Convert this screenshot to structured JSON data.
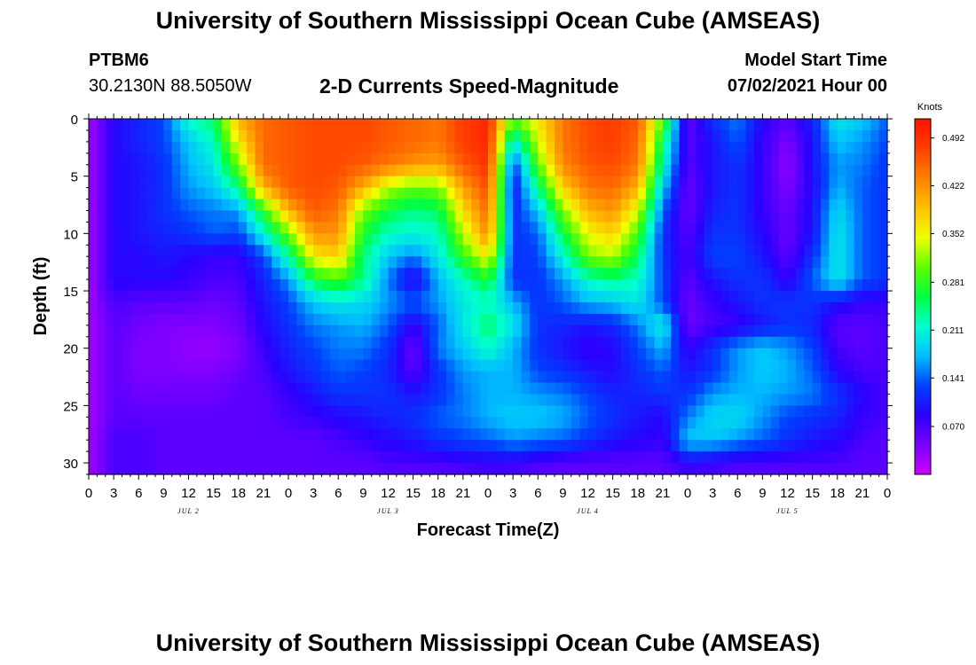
{
  "header": {
    "title": "University of Southern Mississippi Ocean Cube (AMSEAS)",
    "station_id": "PTBM6",
    "station_coords": "30.2130N  88.5050W",
    "chart_title": "2-D Currents Speed-Magnitude",
    "model_start_label": "Model Start Time",
    "model_start_value": "07/02/2021 Hour 00"
  },
  "footer": {
    "title": "University of Southern Mississippi Ocean Cube (AMSEAS)"
  },
  "chart_data": {
    "type": "heatmap",
    "title": "2-D Currents Speed-Magnitude",
    "xlabel": "Forecast Time(Z)",
    "ylabel": "Depth (ft)",
    "x_unit": "hours from model start",
    "xlim": [
      0,
      96
    ],
    "ylim": [
      31,
      0
    ],
    "x_tick_labels": [
      "0",
      "3",
      "6",
      "9",
      "12",
      "15",
      "18",
      "21",
      "0",
      "3",
      "6",
      "9",
      "12",
      "15",
      "18",
      "21",
      "0",
      "3",
      "6",
      "9",
      "12",
      "15",
      "18",
      "21",
      "0",
      "3",
      "6",
      "9",
      "12",
      "15",
      "18",
      "21",
      "0"
    ],
    "y_ticks": [
      0,
      5,
      10,
      15,
      20,
      25,
      30
    ],
    "y_tick_labels": [
      "0",
      "5",
      "10",
      "15",
      "20",
      "25",
      "30"
    ],
    "day_labels": [
      {
        "label": "JUL 2",
        "hour": 12
      },
      {
        "label": "JUL 3",
        "hour": 36
      },
      {
        "label": "JUL 4",
        "hour": 60
      },
      {
        "label": "JUL 5",
        "hour": 84
      }
    ],
    "colorbar": {
      "unit": "Knots",
      "min": 0.0,
      "max": 0.52,
      "tick_values": [
        0.492,
        0.422,
        0.352,
        0.281,
        0.211,
        0.141,
        0.07
      ],
      "tick_labels": [
        "0.492",
        "0.422",
        "0.352",
        "0.281",
        "0.211",
        "0.141",
        "0.070"
      ],
      "colors": [
        "#cc00ff",
        "#7a00ff",
        "#2a00ff",
        "#0040ff",
        "#00c0ff",
        "#00ffd0",
        "#00ff40",
        "#60ff00",
        "#f0ff00",
        "#ffc000",
        "#ff8000",
        "#ff4000",
        "#ff1000"
      ]
    },
    "x_hours": [
      0,
      3,
      6,
      9,
      12,
      15,
      18,
      21,
      24,
      27,
      30,
      33,
      36,
      39,
      42,
      45,
      48,
      51,
      54,
      57,
      60,
      63,
      66,
      69,
      72,
      75,
      78,
      81,
      84,
      87,
      90,
      93,
      96
    ],
    "depths": [
      0,
      2,
      4,
      6,
      8,
      10,
      12,
      14,
      16,
      18,
      20,
      22,
      24,
      26,
      28,
      30,
      31
    ],
    "values": [
      [
        0.02,
        0.09,
        0.11,
        0.13,
        0.22,
        0.25,
        0.4,
        0.45,
        0.46,
        0.47,
        0.47,
        0.47,
        0.46,
        0.45,
        0.44,
        0.48,
        0.5,
        0.3,
        0.36,
        0.44,
        0.47,
        0.48,
        0.46,
        0.3,
        0.05,
        0.12,
        0.15,
        0.09,
        0.06,
        0.11,
        0.2,
        0.18,
        0.14
      ],
      [
        0.02,
        0.09,
        0.11,
        0.13,
        0.18,
        0.22,
        0.36,
        0.45,
        0.46,
        0.47,
        0.47,
        0.47,
        0.46,
        0.45,
        0.44,
        0.48,
        0.5,
        0.2,
        0.34,
        0.44,
        0.47,
        0.48,
        0.45,
        0.25,
        0.06,
        0.1,
        0.14,
        0.08,
        0.04,
        0.1,
        0.18,
        0.16,
        0.13
      ],
      [
        0.02,
        0.09,
        0.1,
        0.12,
        0.17,
        0.2,
        0.31,
        0.45,
        0.46,
        0.47,
        0.47,
        0.46,
        0.44,
        0.42,
        0.41,
        0.46,
        0.49,
        0.12,
        0.3,
        0.43,
        0.46,
        0.47,
        0.44,
        0.22,
        0.06,
        0.1,
        0.12,
        0.08,
        0.03,
        0.1,
        0.16,
        0.15,
        0.12
      ],
      [
        0.02,
        0.09,
        0.1,
        0.12,
        0.16,
        0.18,
        0.24,
        0.4,
        0.46,
        0.47,
        0.46,
        0.4,
        0.33,
        0.3,
        0.31,
        0.41,
        0.47,
        0.1,
        0.24,
        0.38,
        0.44,
        0.45,
        0.4,
        0.18,
        0.05,
        0.1,
        0.12,
        0.08,
        0.04,
        0.09,
        0.17,
        0.14,
        0.12
      ],
      [
        0.02,
        0.09,
        0.1,
        0.12,
        0.14,
        0.15,
        0.16,
        0.28,
        0.4,
        0.46,
        0.44,
        0.31,
        0.26,
        0.24,
        0.25,
        0.37,
        0.45,
        0.11,
        0.18,
        0.31,
        0.4,
        0.42,
        0.34,
        0.14,
        0.05,
        0.11,
        0.12,
        0.08,
        0.05,
        0.1,
        0.19,
        0.14,
        0.12
      ],
      [
        0.02,
        0.09,
        0.1,
        0.11,
        0.12,
        0.14,
        0.13,
        0.21,
        0.31,
        0.42,
        0.42,
        0.27,
        0.22,
        0.21,
        0.22,
        0.33,
        0.43,
        0.12,
        0.14,
        0.26,
        0.35,
        0.38,
        0.29,
        0.12,
        0.06,
        0.12,
        0.12,
        0.09,
        0.05,
        0.1,
        0.2,
        0.14,
        0.12
      ],
      [
        0.02,
        0.09,
        0.09,
        0.1,
        0.09,
        0.08,
        0.08,
        0.13,
        0.23,
        0.36,
        0.38,
        0.24,
        0.18,
        0.15,
        0.2,
        0.28,
        0.36,
        0.12,
        0.13,
        0.21,
        0.31,
        0.33,
        0.25,
        0.12,
        0.07,
        0.13,
        0.13,
        0.1,
        0.06,
        0.12,
        0.2,
        0.14,
        0.12
      ],
      [
        0.02,
        0.09,
        0.09,
        0.09,
        0.08,
        0.07,
        0.07,
        0.11,
        0.16,
        0.26,
        0.29,
        0.24,
        0.15,
        0.08,
        0.17,
        0.22,
        0.27,
        0.12,
        0.12,
        0.16,
        0.22,
        0.24,
        0.22,
        0.13,
        0.06,
        0.1,
        0.12,
        0.12,
        0.08,
        0.14,
        0.2,
        0.14,
        0.12
      ],
      [
        0.02,
        0.07,
        0.06,
        0.06,
        0.06,
        0.05,
        0.06,
        0.1,
        0.13,
        0.18,
        0.2,
        0.19,
        0.16,
        0.14,
        0.16,
        0.2,
        0.22,
        0.17,
        0.12,
        0.14,
        0.17,
        0.18,
        0.2,
        0.13,
        0.05,
        0.08,
        0.1,
        0.12,
        0.12,
        0.12,
        0.1,
        0.08,
        0.08
      ],
      [
        0.02,
        0.06,
        0.05,
        0.04,
        0.04,
        0.04,
        0.05,
        0.09,
        0.12,
        0.15,
        0.16,
        0.17,
        0.14,
        0.08,
        0.14,
        0.2,
        0.25,
        0.2,
        0.12,
        0.11,
        0.1,
        0.11,
        0.15,
        0.21,
        0.05,
        0.07,
        0.08,
        0.1,
        0.12,
        0.11,
        0.06,
        0.06,
        0.07
      ],
      [
        0.02,
        0.06,
        0.04,
        0.04,
        0.03,
        0.03,
        0.04,
        0.08,
        0.11,
        0.13,
        0.15,
        0.15,
        0.12,
        0.05,
        0.15,
        0.18,
        0.22,
        0.17,
        0.12,
        0.1,
        0.08,
        0.09,
        0.13,
        0.17,
        0.08,
        0.12,
        0.16,
        0.18,
        0.16,
        0.13,
        0.07,
        0.06,
        0.07
      ],
      [
        0.02,
        0.06,
        0.04,
        0.04,
        0.04,
        0.04,
        0.05,
        0.07,
        0.1,
        0.12,
        0.14,
        0.13,
        0.11,
        0.06,
        0.12,
        0.16,
        0.17,
        0.17,
        0.13,
        0.12,
        0.1,
        0.09,
        0.12,
        0.14,
        0.1,
        0.12,
        0.16,
        0.18,
        0.17,
        0.14,
        0.09,
        0.07,
        0.07
      ],
      [
        0.02,
        0.06,
        0.05,
        0.05,
        0.05,
        0.05,
        0.06,
        0.06,
        0.08,
        0.1,
        0.12,
        0.12,
        0.12,
        0.1,
        0.12,
        0.15,
        0.17,
        0.17,
        0.16,
        0.15,
        0.13,
        0.11,
        0.11,
        0.12,
        0.12,
        0.16,
        0.17,
        0.17,
        0.16,
        0.15,
        0.12,
        0.09,
        0.07
      ],
      [
        0.02,
        0.06,
        0.06,
        0.06,
        0.06,
        0.06,
        0.06,
        0.06,
        0.07,
        0.08,
        0.09,
        0.1,
        0.11,
        0.12,
        0.14,
        0.15,
        0.17,
        0.18,
        0.18,
        0.17,
        0.14,
        0.12,
        0.1,
        0.09,
        0.15,
        0.19,
        0.19,
        0.16,
        0.13,
        0.12,
        0.11,
        0.08,
        0.07
      ],
      [
        0.02,
        0.07,
        0.07,
        0.06,
        0.06,
        0.06,
        0.06,
        0.06,
        0.06,
        0.06,
        0.07,
        0.08,
        0.09,
        0.1,
        0.12,
        0.13,
        0.14,
        0.16,
        0.15,
        0.14,
        0.12,
        0.1,
        0.09,
        0.08,
        0.18,
        0.18,
        0.16,
        0.14,
        0.12,
        0.1,
        0.09,
        0.07,
        0.06
      ],
      [
        0.02,
        0.07,
        0.07,
        0.06,
        0.06,
        0.06,
        0.06,
        0.06,
        0.06,
        0.06,
        0.06,
        0.06,
        0.07,
        0.07,
        0.07,
        0.08,
        0.08,
        0.08,
        0.07,
        0.06,
        0.06,
        0.06,
        0.06,
        0.06,
        0.09,
        0.08,
        0.07,
        0.07,
        0.07,
        0.07,
        0.07,
        0.06,
        0.06
      ],
      [
        0.02,
        0.07,
        0.07,
        0.06,
        0.06,
        0.06,
        0.06,
        0.06,
        0.06,
        0.06,
        0.06,
        0.06,
        0.06,
        0.06,
        0.06,
        0.06,
        0.07,
        0.07,
        0.06,
        0.06,
        0.06,
        0.06,
        0.06,
        0.06,
        0.07,
        0.07,
        0.06,
        0.06,
        0.06,
        0.06,
        0.06,
        0.06,
        0.06
      ]
    ]
  }
}
